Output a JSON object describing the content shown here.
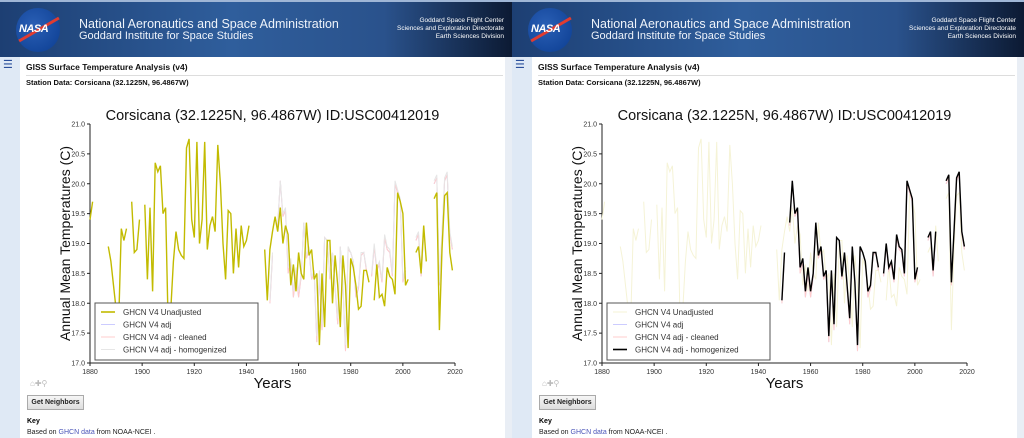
{
  "header": {
    "line1": "National Aeronautics and Space Administration",
    "line2": "Goddard Institute for Space Studies",
    "right": [
      "Goddard Space Flight Center",
      "Sciences and Exploration Directorate",
      "Earth Sciences Division"
    ],
    "logo_text": "NASA"
  },
  "page": {
    "title": "GISS Surface Temperature Analysis (v4)",
    "station": "Station Data: Corsicana (32.1225N, 96.4867W)",
    "button": "Get Neighbors",
    "key": "Key",
    "based_prefix": "Based on ",
    "based_link": "GHCN data",
    "based_suffix": " from NOAA-NCEI ."
  },
  "colors": {
    "unadjusted": "#c2bb00",
    "adj": "#ccccff",
    "cleaned": "#ffcccc",
    "homogenized": "#000000",
    "faded_unadjusted": "#f5f3d6",
    "faded_homogenized": "#e6e6e6"
  },
  "panels": [
    {
      "highlight": "GHCN V4 Unadjusted"
    },
    {
      "highlight": "GHCN V4 adj - homogenized"
    }
  ],
  "chart_data": {
    "type": "line",
    "title": "Corsicana (32.1225N, 96.4867W) ID:USC00412019",
    "xlabel": "Years",
    "ylabel": "Annual Mean Temperatures (C)",
    "xlim": [
      1880,
      2020
    ],
    "ylim": [
      17.0,
      21.0
    ],
    "xticks": [
      1880,
      1900,
      1920,
      1940,
      1960,
      1980,
      2000,
      2020
    ],
    "yticks": [
      "17.0",
      "17.5",
      "18.0",
      "18.5",
      "19.0",
      "19.5",
      "20.0",
      "20.5",
      "21.0"
    ],
    "legend_placement": "lower-left",
    "series": [
      {
        "name": "GHCN V4 Unadjusted",
        "start_year": 1880,
        "values": [
          19.4,
          19.7,
          null,
          null,
          null,
          null,
          null,
          18.95,
          18.7,
          18.3,
          17.9,
          17.7,
          19.25,
          19.05,
          19.25,
          null,
          19.7,
          18.85,
          18.9,
          19.4,
          null,
          19.65,
          18.4,
          19.6,
          18.2,
          20.35,
          20.2,
          20.3,
          19.5,
          19.6,
          17.6,
          17.9,
          18.7,
          19.2,
          18.9,
          18.8,
          18.75,
          20.6,
          20.75,
          19.4,
          19.1,
          20.7,
          19.0,
          19.4,
          20.7,
          18.9,
          19.3,
          19.45,
          19.2,
          20.65,
          20.0,
          19.0,
          18.4,
          19.55,
          19.5,
          18.5,
          19.25,
          18.6,
          19.3,
          18.95,
          19.05,
          19.3,
          null,
          null,
          null,
          null,
          null,
          18.9,
          18.05,
          18.9,
          19.2,
          19.45,
          19.2,
          19.6,
          19.0,
          19.3,
          19.15,
          18.3,
          18.65,
          18.2,
          18.85,
          18.5,
          18.4,
          19.35,
          18.8,
          18.9,
          18.4,
          18.5,
          17.3,
          18.5,
          17.6,
          19.05,
          19.05,
          18.0,
          18.8,
          18.3,
          17.6,
          18.8,
          18.3,
          17.25,
          18.75,
          18.6,
          18.3,
          17.9,
          17.95,
          18.55,
          18.55,
          18.35,
          null,
          18.05,
          18.65,
          18.1,
          18.15,
          17.95,
          18.6,
          18.45,
          18.4,
          18.15,
          19.85,
          19.7,
          19.5,
          18.3,
          18.4,
          null,
          null,
          18.85,
          18.95,
          18.5,
          19.3,
          18.7,
          null,
          null,
          19.75,
          19.85,
          17.55,
          18.9,
          19.8,
          19.85,
          18.85,
          18.55
        ]
      },
      {
        "name": "GHCN V4 adj",
        "start_year": 1949,
        "values": [
          18.0,
          18.8,
          null,
          19.3,
          20.05,
          19.45,
          19.55,
          18.5,
          18.7,
          18.1,
          18.5,
          18.1,
          18.45,
          19.35,
          18.75,
          18.9,
          18.4,
          18.5,
          17.35,
          18.5,
          17.55,
          19.1,
          19.05,
          18.4,
          18.85,
          18.25,
          17.65,
          18.95,
          18.3,
          17.2,
          18.9,
          18.85,
          18.7,
          18.1,
          18.25,
          18.8,
          18.85,
          18.55,
          null,
          18.45,
          18.95,
          18.55,
          18.65,
          18.35,
          19.1,
          18.9,
          18.85,
          18.45,
          20.0,
          19.85,
          19.7,
          18.35,
          18.55,
          null,
          null,
          null,
          19.05,
          19.15,
          18.45,
          19.15,
          null,
          null,
          null,
          20.0,
          20.1,
          18.3,
          19.15,
          20.05,
          20.15,
          19.15,
          18.9
        ]
      },
      {
        "name": "GHCN V4 adj - cleaned",
        "start_year": 1949,
        "values": [
          18.0,
          18.8,
          null,
          19.3,
          20.05,
          19.45,
          19.55,
          18.5,
          18.7,
          18.1,
          18.5,
          18.1,
          18.45,
          19.35,
          18.75,
          18.9,
          18.4,
          18.5,
          17.35,
          18.5,
          17.55,
          19.1,
          19.05,
          18.4,
          18.85,
          18.25,
          17.65,
          18.95,
          18.3,
          17.2,
          18.9,
          18.85,
          18.7,
          18.1,
          18.25,
          18.8,
          18.85,
          18.55,
          null,
          18.45,
          18.95,
          18.55,
          18.65,
          18.35,
          19.1,
          18.9,
          18.85,
          18.45,
          20.0,
          19.85,
          19.7,
          18.35,
          18.55,
          null,
          null,
          null,
          19.05,
          19.15,
          18.45,
          19.15,
          null,
          null,
          null,
          20.0,
          20.1,
          18.3,
          19.15,
          20.05,
          20.15,
          19.15,
          18.9
        ]
      },
      {
        "name": "GHCN V4 adj - homogenized",
        "start_year": 1949,
        "values": [
          18.05,
          18.85,
          null,
          19.35,
          20.05,
          19.5,
          19.6,
          18.6,
          18.75,
          18.2,
          18.6,
          18.2,
          18.5,
          19.35,
          18.8,
          18.95,
          18.45,
          18.55,
          17.45,
          18.55,
          17.65,
          19.1,
          19.05,
          18.45,
          18.85,
          18.3,
          17.75,
          18.95,
          18.35,
          17.3,
          18.95,
          18.85,
          18.7,
          18.2,
          18.3,
          18.85,
          18.85,
          18.6,
          null,
          18.5,
          19.0,
          18.6,
          18.7,
          18.4,
          19.15,
          18.95,
          18.9,
          18.5,
          20.05,
          19.9,
          19.75,
          18.4,
          18.6,
          null,
          null,
          null,
          19.1,
          19.2,
          18.55,
          19.2,
          null,
          null,
          null,
          20.05,
          20.15,
          18.35,
          19.2,
          20.1,
          20.2,
          19.2,
          18.95
        ]
      }
    ]
  }
}
